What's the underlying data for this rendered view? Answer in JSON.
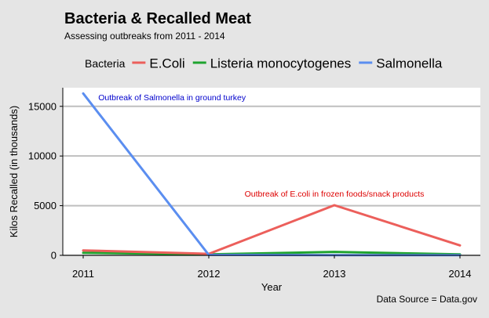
{
  "chart_data": {
    "type": "line",
    "title": "Bacteria & Recalled Meat",
    "subtitle": "Assessing outbreaks from 2011 - 2014",
    "xlabel": "Year",
    "ylabel": "Kilos Recalled (in thousands)",
    "x": [
      2011,
      2012,
      2013,
      2014
    ],
    "xlim": [
      2011,
      2014
    ],
    "ylim": [
      0,
      16400
    ],
    "yticks": [
      0,
      5000,
      10000,
      15000
    ],
    "grid": true,
    "legend": {
      "title": "Bacteria",
      "position": "top"
    },
    "series": [
      {
        "name": "E.Coli",
        "color": "#ec5f5b",
        "values": [
          500,
          150,
          5050,
          1000
        ]
      },
      {
        "name": "Listeria monocytogenes",
        "color": "#1fa42f",
        "values": [
          250,
          100,
          350,
          100
        ]
      },
      {
        "name": "Salmonella",
        "color": "#5b8ef0",
        "values": [
          16300,
          50,
          20,
          20
        ]
      }
    ],
    "annotations": [
      {
        "text": "Outbreak of Salmonella in ground turkey",
        "x": 2011.12,
        "y": 15600,
        "color": "#0000cc",
        "anchor": "start"
      },
      {
        "text": "Outbreak of E.coli in frozen foods/snack products",
        "x": 2013,
        "y": 5900,
        "color": "#dd0000",
        "anchor": "middle"
      }
    ],
    "caption": "Data Source = Data.gov"
  }
}
